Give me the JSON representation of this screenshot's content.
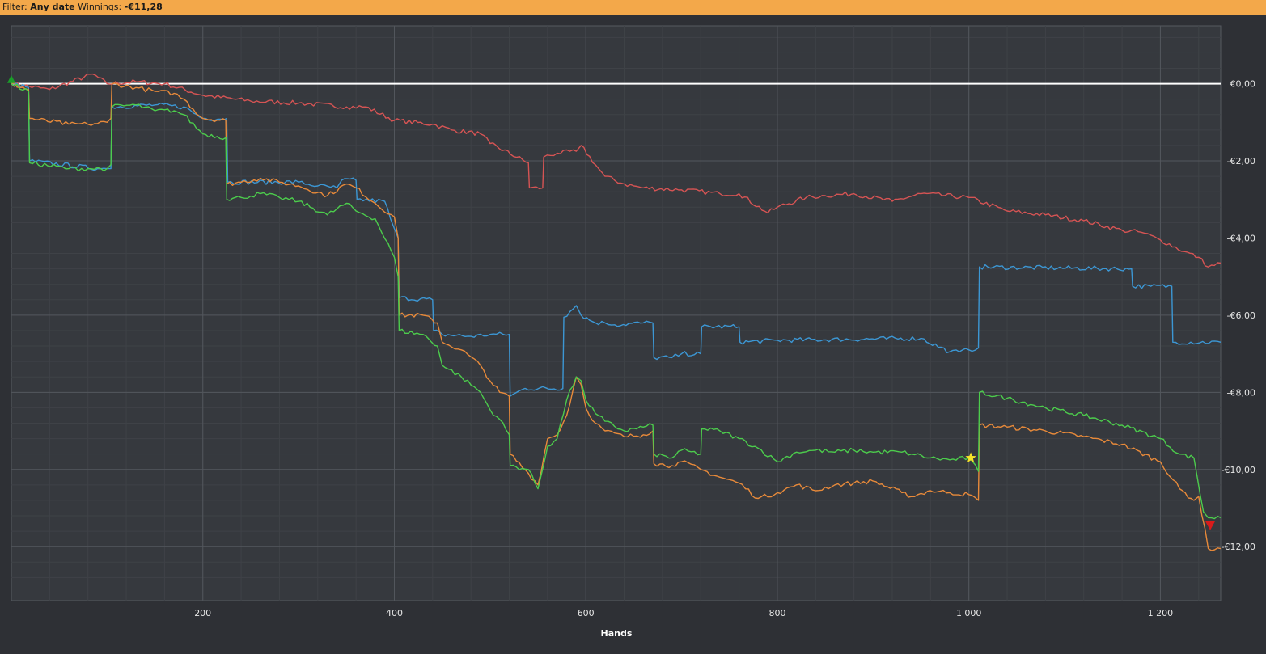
{
  "filter_bar": {
    "filter_label": "Filter:",
    "filter_value": "Any date",
    "winnings_label": "Winnings:",
    "winnings_value": "-€11,28"
  },
  "chart_data": {
    "type": "line",
    "xlabel": "Hands",
    "ylabel": "",
    "xlim": [
      0,
      1263
    ],
    "ylim": [
      -13.4,
      1.5
    ],
    "grid": true,
    "x_ticks": [
      200,
      400,
      600,
      800,
      1000,
      1200
    ],
    "x_tick_labels": [
      "200",
      "400",
      "600",
      "800",
      "1 000",
      "1 200"
    ],
    "y_ticks": [
      0,
      -2,
      -4,
      -6,
      -8,
      -10,
      -12
    ],
    "y_tick_labels": [
      "€0,00",
      "-€2,00",
      "-€4,00",
      "-€6,00",
      "-€8,00",
      "-€10,00",
      "-€12,00"
    ],
    "zero_line": true,
    "series": [
      {
        "color": "#d65454",
        "x": [
          0,
          40,
          85,
          100,
          130,
          160,
          200,
          250,
          300,
          350,
          370,
          400,
          440,
          460,
          490,
          500,
          540,
          541,
          555,
          556,
          570,
          590,
          595,
          610,
          620,
          640,
          660,
          700,
          740,
          760,
          790,
          800,
          830,
          850,
          880,
          920,
          950,
          1000,
          1040,
          1080,
          1120,
          1160,
          1180,
          1200,
          1225,
          1240,
          1250,
          1263
        ],
        "y": [
          0,
          -0.15,
          0.25,
          0.0,
          0.05,
          0.0,
          -0.3,
          -0.45,
          -0.5,
          -0.6,
          -0.6,
          -0.95,
          -1.05,
          -1.2,
          -1.3,
          -1.55,
          -2.05,
          -2.7,
          -2.7,
          -1.9,
          -1.8,
          -1.75,
          -1.6,
          -2.1,
          -2.4,
          -2.6,
          -2.7,
          -2.75,
          -2.85,
          -2.85,
          -3.35,
          -3.2,
          -2.95,
          -2.9,
          -2.85,
          -3.05,
          -2.85,
          -2.95,
          -3.3,
          -3.4,
          -3.55,
          -3.8,
          -3.85,
          -4.05,
          -4.35,
          -4.5,
          -4.75,
          -4.65
        ]
      },
      {
        "color": "#3c97d4",
        "x": [
          0,
          18,
          19,
          90,
          100,
          104,
          105,
          150,
          180,
          200,
          225,
          226,
          300,
          320,
          340,
          345,
          360,
          361,
          390,
          396,
          404,
          405,
          440,
          441,
          450,
          480,
          500,
          520,
          521,
          536,
          537,
          576,
          577,
          590,
          595,
          610,
          620,
          630,
          660,
          670,
          671,
          690,
          700,
          720,
          721,
          760,
          761,
          800,
          950,
          980,
          990,
          1000,
          1010,
          1011,
          1170,
          1171,
          1190,
          1212,
          1213,
          1263
        ],
        "y": [
          0,
          -0.1,
          -2.0,
          -2.2,
          -2.2,
          -2.2,
          -0.6,
          -0.55,
          -0.6,
          -0.9,
          -0.9,
          -2.55,
          -2.55,
          -2.65,
          -2.7,
          -2.5,
          -2.5,
          -3.0,
          -3.05,
          -3.5,
          -4.0,
          -5.55,
          -5.6,
          -6.4,
          -6.5,
          -6.55,
          -6.5,
          -6.5,
          -8.1,
          -7.9,
          -7.9,
          -7.9,
          -6.05,
          -5.75,
          -6.0,
          -6.2,
          -6.2,
          -6.25,
          -6.2,
          -6.2,
          -7.1,
          -7.1,
          -7.0,
          -7.0,
          -6.3,
          -6.3,
          -6.7,
          -6.65,
          -6.6,
          -6.95,
          -6.95,
          -6.9,
          -6.85,
          -4.75,
          -4.8,
          -5.25,
          -5.25,
          -5.25,
          -6.7,
          -6.7
        ]
      },
      {
        "color": "#e88a3a",
        "x": [
          0,
          18,
          19,
          60,
          80,
          100,
          104,
          105,
          130,
          150,
          170,
          180,
          200,
          224,
          225,
          240,
          260,
          280,
          300,
          330,
          350,
          360,
          380,
          400,
          404,
          405,
          430,
          445,
          450,
          470,
          490,
          500,
          510,
          520,
          521,
          540,
          550,
          560,
          570,
          580,
          590,
          595,
          600,
          610,
          620,
          640,
          660,
          670,
          671,
          690,
          700,
          720,
          740,
          760,
          780,
          800,
          820,
          840,
          860,
          880,
          900,
          930,
          940,
          960,
          980,
          1000,
          1010,
          1011,
          1040,
          1080,
          1120,
          1160,
          1200,
          1220,
          1235,
          1240,
          1250,
          1263
        ],
        "y": [
          0,
          -0.15,
          -0.9,
          -1.05,
          -1.05,
          -1.0,
          -0.9,
          0.0,
          -0.1,
          -0.2,
          -0.25,
          -0.4,
          -0.9,
          -0.95,
          -2.6,
          -2.55,
          -2.45,
          -2.55,
          -2.65,
          -2.9,
          -2.6,
          -2.7,
          -3.1,
          -3.45,
          -4.0,
          -6.0,
          -6.0,
          -6.2,
          -6.7,
          -6.9,
          -7.3,
          -7.7,
          -8.0,
          -8.1,
          -9.6,
          -10.1,
          -10.4,
          -9.2,
          -9.1,
          -8.6,
          -7.6,
          -7.8,
          -8.4,
          -8.8,
          -9.0,
          -9.15,
          -9.1,
          -9.0,
          -9.85,
          -9.9,
          -9.8,
          -10.0,
          -10.2,
          -10.35,
          -10.75,
          -10.6,
          -10.4,
          -10.55,
          -10.4,
          -10.35,
          -10.3,
          -10.6,
          -10.7,
          -10.55,
          -10.6,
          -10.65,
          -10.8,
          -8.85,
          -8.9,
          -9.0,
          -9.15,
          -9.35,
          -9.8,
          -10.5,
          -10.8,
          -10.7,
          -12.05,
          -12.05
        ]
      },
      {
        "color": "#4ccc4c",
        "x": [
          0,
          18,
          19,
          60,
          80,
          100,
          104,
          105,
          130,
          150,
          170,
          180,
          200,
          224,
          225,
          240,
          260,
          280,
          300,
          330,
          350,
          360,
          380,
          400,
          404,
          405,
          430,
          445,
          450,
          470,
          490,
          500,
          510,
          520,
          521,
          540,
          550,
          560,
          570,
          580,
          590,
          595,
          600,
          610,
          620,
          640,
          660,
          670,
          671,
          690,
          700,
          720,
          721,
          740,
          760,
          780,
          800,
          820,
          840,
          860,
          880,
          900,
          930,
          940,
          960,
          980,
          1000,
          1010,
          1011,
          1040,
          1080,
          1120,
          1160,
          1200,
          1220,
          1235,
          1245,
          1250,
          1263
        ],
        "y": [
          0,
          -0.2,
          -2.05,
          -2.2,
          -2.2,
          -2.2,
          -2.1,
          -0.6,
          -0.55,
          -0.7,
          -0.7,
          -0.8,
          -1.3,
          -1.4,
          -3.0,
          -2.95,
          -2.85,
          -2.95,
          -3.05,
          -3.4,
          -3.1,
          -3.3,
          -3.5,
          -4.5,
          -5.0,
          -6.4,
          -6.5,
          -6.8,
          -7.3,
          -7.6,
          -8.0,
          -8.45,
          -8.7,
          -9.1,
          -9.9,
          -10.0,
          -10.5,
          -9.4,
          -9.2,
          -8.2,
          -7.6,
          -7.7,
          -8.2,
          -8.55,
          -8.75,
          -9.0,
          -8.9,
          -8.85,
          -9.6,
          -9.7,
          -9.5,
          -9.6,
          -8.95,
          -9.0,
          -9.2,
          -9.45,
          -9.8,
          -9.55,
          -9.5,
          -9.55,
          -9.5,
          -9.55,
          -9.55,
          -9.6,
          -9.7,
          -9.75,
          -9.7,
          -10.05,
          -8.0,
          -8.15,
          -8.4,
          -8.6,
          -8.85,
          -9.2,
          -9.6,
          -9.7,
          -11.1,
          -11.25,
          -11.25
        ]
      }
    ],
    "markers": [
      {
        "name": "start",
        "shape": "triangle-up",
        "color": "#1a9e2a",
        "x": 0,
        "y": 0.1
      },
      {
        "name": "star",
        "shape": "star",
        "color": "#f4e22a",
        "x": 1002,
        "y": -9.7
      },
      {
        "name": "end",
        "shape": "triangle-down",
        "color": "#d81b1b",
        "x": 1252,
        "y": -11.45
      }
    ]
  }
}
